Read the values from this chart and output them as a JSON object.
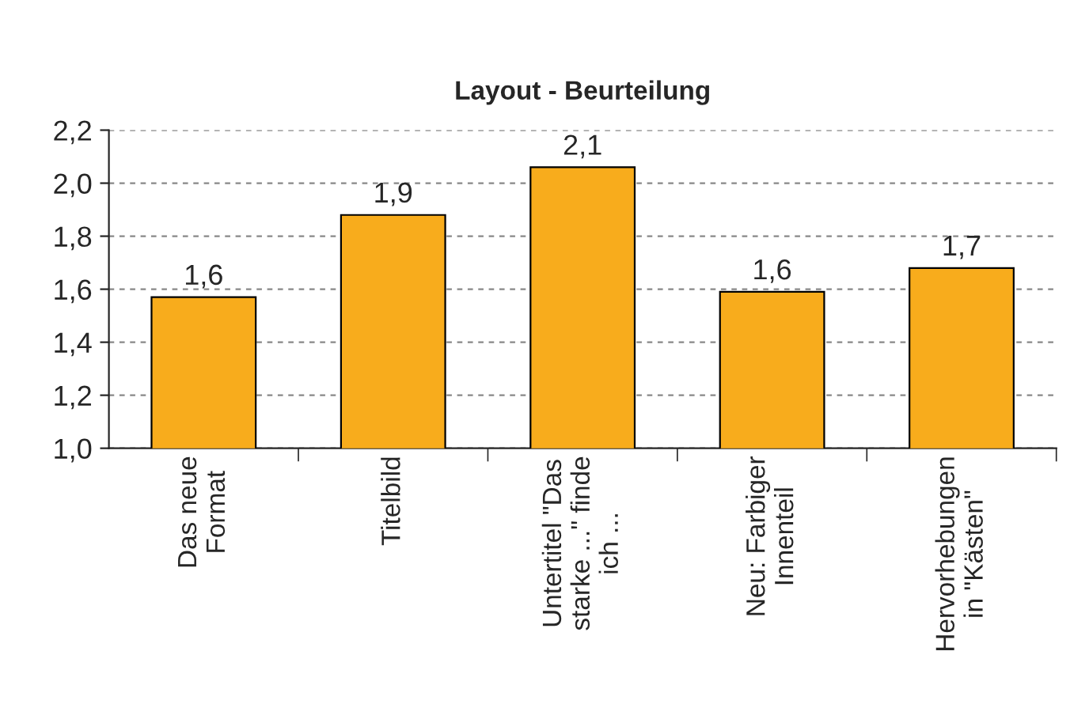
{
  "chart_data": {
    "type": "bar",
    "title": "Layout - Beurteilung",
    "categories": [
      "Das neue\nFormat",
      "Titelbild",
      "Untertitel \"Das\nstarke ...\" finde\nich ...",
      "Neu: Farbiger\nInnenteil",
      "Hervorhebungen\nin \"Kästen\""
    ],
    "values": [
      1.57,
      1.88,
      2.06,
      1.59,
      1.68
    ],
    "value_labels": [
      "1,6",
      "1,9",
      "2,1",
      "1,6",
      "1,7"
    ],
    "color": "#f8ac1c",
    "ylim": [
      1.0,
      2.2
    ],
    "yticks": [
      {
        "value": 1.0,
        "label": "1,0"
      },
      {
        "value": 1.2,
        "label": "1,2"
      },
      {
        "value": 1.4,
        "label": "1,4"
      },
      {
        "value": 1.6,
        "label": "1,6"
      },
      {
        "value": 1.8,
        "label": "1,8"
      },
      {
        "value": 2.0,
        "label": "2,0"
      },
      {
        "value": 2.2,
        "label": "2,2"
      }
    ],
    "grid": "y",
    "legend": false
  }
}
